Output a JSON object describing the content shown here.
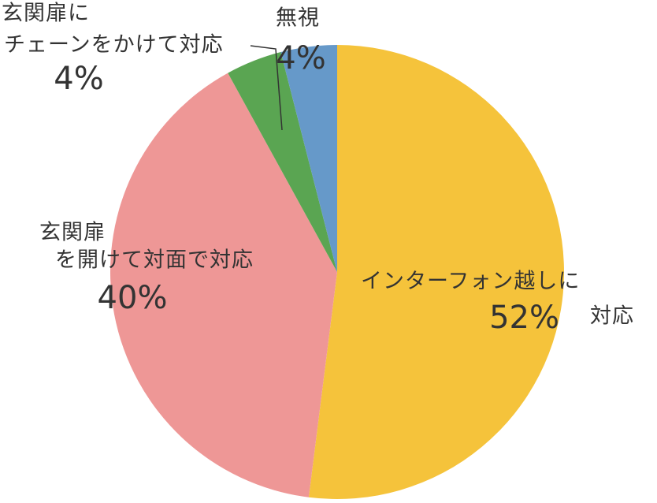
{
  "chart_data": {
    "type": "pie",
    "categories": [
      [
        "インターフォン越しに",
        "対応"
      ],
      [
        "玄関扉",
        "を開けて対面で対応"
      ],
      [
        "玄関扉に",
        "チェーンをかけて対応"
      ],
      [
        "無視"
      ]
    ],
    "values": [
      52,
      40,
      4,
      4
    ],
    "value_labels": [
      "52%",
      "40%",
      "4%",
      "4%"
    ],
    "colors": [
      "#f5c33b",
      "#ee9796",
      "#5aa552",
      "#6699c9"
    ]
  }
}
